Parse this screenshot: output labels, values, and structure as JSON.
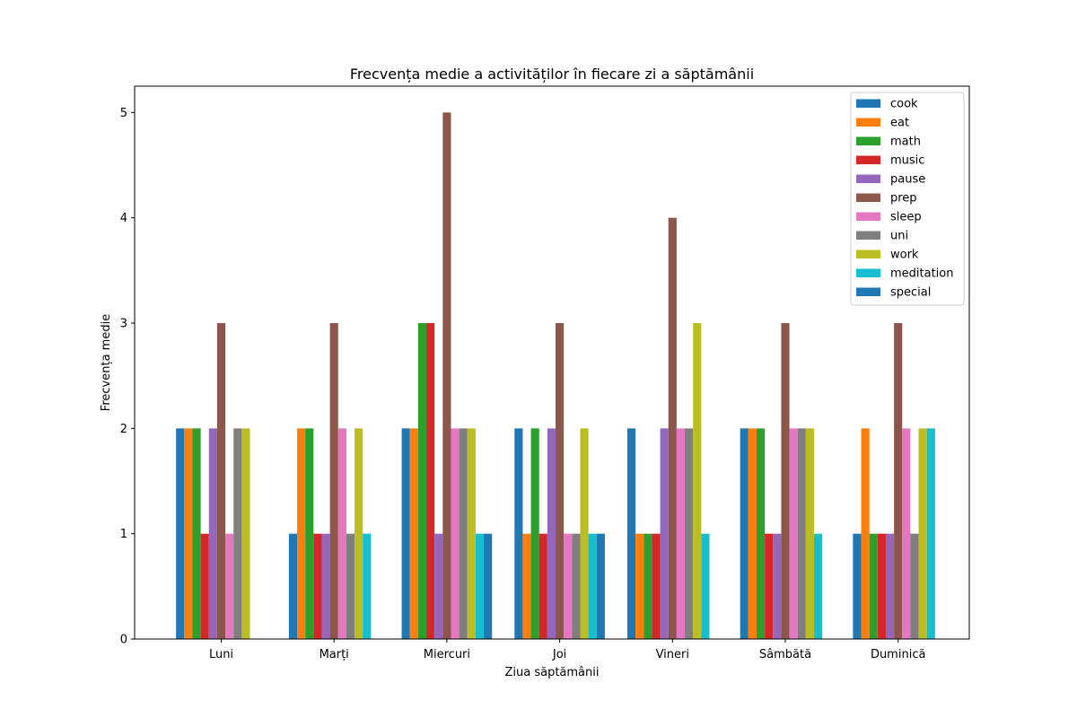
{
  "chart_data": {
    "type": "bar",
    "title": "Frecvența medie a activităților în fiecare zi a săptămânii",
    "xlabel": "Ziua săptămânii",
    "ylabel": "Frecvența medie",
    "ylim": [
      0,
      5.25
    ],
    "yticks": [
      "0",
      "1",
      "2",
      "3",
      "4",
      "5"
    ],
    "legend_position": "top-right",
    "categories": [
      "Luni",
      "Marți",
      "Miercuri",
      "Joi",
      "Vineri",
      "Sâmbătă",
      "Duminică"
    ],
    "series": [
      {
        "name": "cook",
        "color": "#1f77b4",
        "values": [
          2,
          1,
          2,
          2,
          2,
          2,
          1
        ]
      },
      {
        "name": "eat",
        "color": "#ff7f0e",
        "values": [
          2,
          2,
          2,
          1,
          1,
          2,
          2
        ]
      },
      {
        "name": "math",
        "color": "#2ca02c",
        "values": [
          2,
          2,
          3,
          2,
          1,
          2,
          1
        ]
      },
      {
        "name": "music",
        "color": "#d62728",
        "values": [
          1,
          1,
          3,
          1,
          1,
          1,
          1
        ]
      },
      {
        "name": "pause",
        "color": "#9467bd",
        "values": [
          2,
          1,
          1,
          2,
          2,
          1,
          1
        ]
      },
      {
        "name": "prep",
        "color": "#8c564b",
        "values": [
          3,
          3,
          5,
          3,
          4,
          3,
          3
        ]
      },
      {
        "name": "sleep",
        "color": "#e377c2",
        "values": [
          1,
          2,
          2,
          1,
          2,
          2,
          2
        ]
      },
      {
        "name": "uni",
        "color": "#7f7f7f",
        "values": [
          2,
          1,
          2,
          1,
          2,
          2,
          1
        ]
      },
      {
        "name": "work",
        "color": "#bcbd22",
        "values": [
          2,
          2,
          2,
          2,
          3,
          2,
          2
        ]
      },
      {
        "name": "meditation",
        "color": "#17becf",
        "values": [
          0,
          1,
          1,
          1,
          1,
          1,
          2
        ]
      },
      {
        "name": "special",
        "color": "#1f77b4",
        "values": [
          0,
          0,
          1,
          1,
          0,
          0,
          0
        ]
      }
    ]
  }
}
